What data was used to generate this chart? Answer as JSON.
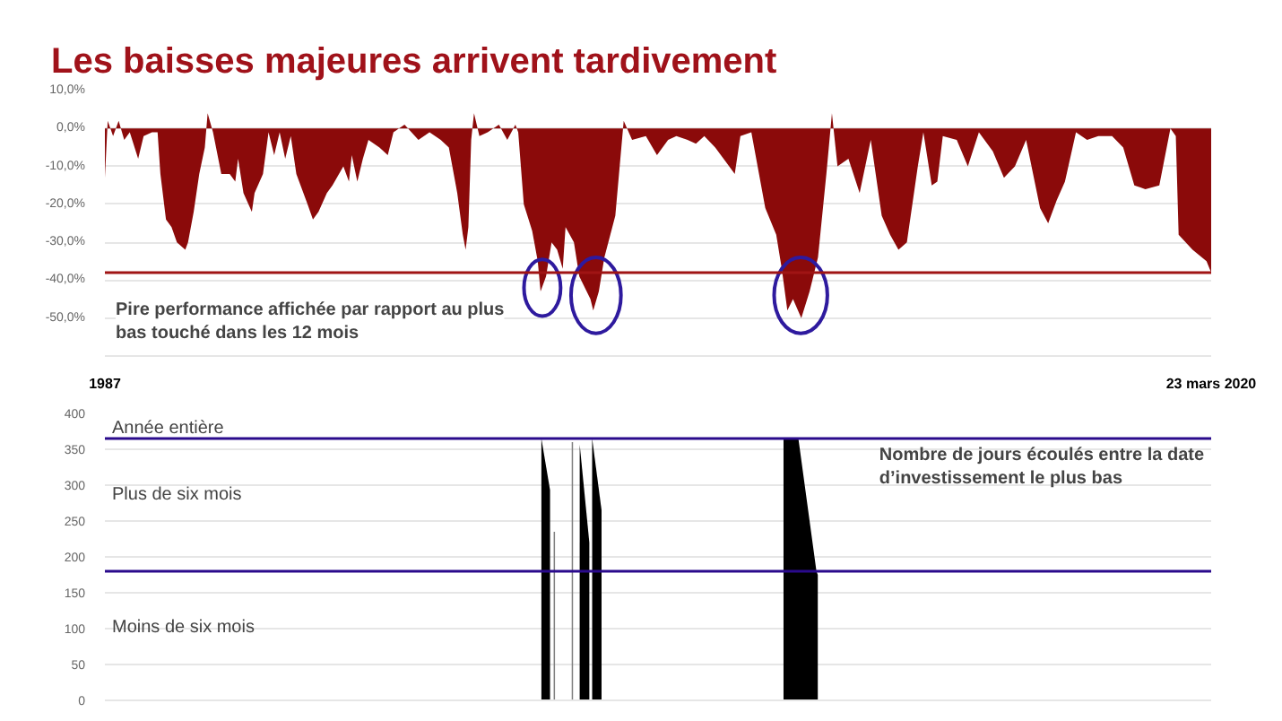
{
  "chart_data": [
    {
      "type": "area",
      "title": "Les baisses majeures arrivent tardivement",
      "x": [
        "1987-01",
        "1987-02",
        "1987-04",
        "1987-06",
        "1987-08",
        "1987-10",
        "1988-01",
        "1988-03",
        "1988-06",
        "1988-08",
        "1988-09",
        "1988-11",
        "1989-01",
        "1989-03",
        "1989-06",
        "1989-07",
        "1989-09",
        "1989-11",
        "1990-01",
        "1990-02",
        "1990-04",
        "1990-07",
        "1990-10",
        "1990-12",
        "1991-01",
        "1991-03",
        "1991-06",
        "1991-07",
        "1991-10",
        "1991-12",
        "1992-02",
        "1992-04",
        "1992-06",
        "1992-08",
        "1992-10",
        "1993-02",
        "1993-04",
        "1993-06",
        "1993-09",
        "1993-11",
        "1994-03",
        "1994-05",
        "1994-06",
        "1994-08",
        "1994-10",
        "1994-12",
        "1995-04",
        "1995-07",
        "1995-09",
        "1996-01",
        "1996-06",
        "1996-10",
        "1997-02",
        "1997-05",
        "1997-08",
        "1997-10",
        "1997-11",
        "1997-12",
        "1998-01",
        "1998-02",
        "1998-04",
        "1998-07",
        "1998-11",
        "1999-02",
        "1999-05",
        "1999-06",
        "1999-08",
        "1999-11",
        "2000-01",
        "2000-02",
        "2000-04",
        "2000-06",
        "2000-08",
        "2000-10",
        "2000-11",
        "2001-02",
        "2001-04",
        "2001-08",
        "2001-09",
        "2001-11",
        "2002-01",
        "2002-05",
        "2002-08",
        "2002-11",
        "2003-04",
        "2003-08",
        "2003-12",
        "2004-03",
        "2004-07",
        "2004-10",
        "2005-01",
        "2005-05",
        "2005-10",
        "2005-12",
        "2006-02",
        "2006-06",
        "2006-11",
        "2007-03",
        "2007-05",
        "2007-07",
        "2007-09",
        "2007-12",
        "2008-03",
        "2008-06",
        "2008-09",
        "2008-11",
        "2009-01",
        "2009-05",
        "2009-09",
        "2010-01",
        "2010-05",
        "2010-08",
        "2010-11",
        "2011-02",
        "2011-06",
        "2011-08",
        "2011-11",
        "2012-01",
        "2012-03",
        "2012-08",
        "2012-12",
        "2013-04",
        "2013-09",
        "2014-01",
        "2014-05",
        "2014-09",
        "2015-02",
        "2015-05",
        "2015-08",
        "2015-11",
        "2016-03",
        "2016-07",
        "2016-11",
        "2017-04",
        "2017-08",
        "2017-12",
        "2018-04",
        "2018-09",
        "2019-01",
        "2019-03",
        "2019-04",
        "2019-09",
        "2020-02",
        "2020-03-23"
      ],
      "series": [
        {
          "color": "#8b0a0a",
          "values": [
            -13,
            2,
            -2,
            2,
            -3,
            -1,
            -8,
            -2,
            -1,
            -1,
            -12,
            -24,
            -26,
            -30,
            -32,
            -30,
            -22,
            -12,
            -5,
            4,
            -1,
            -12,
            -12,
            -14,
            -8,
            -17,
            -22,
            -17,
            -12,
            -1,
            -7,
            -1,
            -8,
            -2,
            -12,
            -20,
            -24,
            -22,
            -17,
            -15,
            -10,
            -14,
            -7,
            -14,
            -8,
            -3,
            -5,
            -7,
            -1,
            1,
            -3,
            -1,
            -3,
            -5,
            -17,
            -28,
            -32,
            -26,
            -3,
            4,
            -2,
            -1,
            1,
            -3,
            1,
            -1,
            -20,
            -27,
            -35,
            -43,
            -39,
            -30,
            -32,
            -37,
            -26,
            -30,
            -39,
            -45,
            -48,
            -43,
            -34,
            -23,
            2,
            -3,
            -2,
            -7,
            -3,
            -2,
            -3,
            -4,
            -2,
            -5,
            -10,
            -12,
            -2,
            -1,
            -21,
            -28,
            -37,
            -48,
            -45,
            -50,
            -43,
            -34,
            -12,
            4,
            -10,
            -8,
            -17,
            -3,
            -23,
            -28,
            -32,
            -30,
            -10,
            -1,
            -15,
            -14,
            -2,
            -3,
            -10,
            -1,
            -6,
            -13,
            -10,
            -3,
            -21,
            -25,
            -19,
            -14,
            -1,
            -3,
            -2,
            -2,
            -5,
            -15,
            -16,
            -15,
            0,
            -2,
            -28,
            -32,
            -35,
            -38
          ]
        }
      ],
      "xlim": [
        "1987-01-01",
        "2020-03-23"
      ],
      "xticks": [
        {
          "value": "1987-01-01",
          "label": "1987"
        },
        {
          "value": "2020-03-23",
          "label": "23 mars 2020"
        }
      ],
      "ylim": [
        -60,
        10
      ],
      "yticks": [
        {
          "value": 10,
          "label": "10,0%"
        },
        {
          "value": 0,
          "label": "0,0%"
        },
        {
          "value": -10,
          "label": "-10,0%"
        },
        {
          "value": -20,
          "label": "-20,0%"
        },
        {
          "value": -30,
          "label": "-30,0%"
        },
        {
          "value": -40,
          "label": "-40,0%"
        },
        {
          "value": -50,
          "label": "-50,0%"
        },
        {
          "value": -60,
          "label": null
        }
      ],
      "grid": "y",
      "ref_lines": [
        {
          "axis": "y",
          "value": -38,
          "color": "#a01414"
        }
      ],
      "annotations": [
        "Pire performance affichée par rapport au plus bas touché dans les 12 mois"
      ]
    },
    {
      "type": "area",
      "x": [
        "2000-02-10",
        "2000-05-15",
        null,
        "2001-04-05",
        "2001-07-20",
        null,
        "2001-08-20",
        "2001-12-01",
        null,
        "2007-05-20",
        "2007-10-30",
        "2008-05-15",
        "2008-05-30"
      ],
      "series": [
        {
          "color": "#000000",
          "values": [
            365,
            293,
            null,
            357,
            220,
            null,
            365,
            265,
            null,
            365,
            365,
            180,
            175
          ]
        },
        {
          "type": "bar",
          "color": "#808080",
          "x": [
            "2000-07-01",
            "2001-01-15"
          ],
          "values": [
            235,
            360
          ]
        }
      ],
      "xlim": [
        "1987-01-01",
        "2020-03-23"
      ],
      "ylim": [
        0,
        400
      ],
      "yticks": [
        0,
        50,
        100,
        150,
        200,
        250,
        300,
        350,
        400
      ],
      "tick_labels": "y",
      "grid": "y",
      "ref_lines": [
        {
          "axis": "y",
          "value": 365,
          "label": "Année entière",
          "color": "#2a0a8c"
        },
        {
          "axis": "y",
          "value": 180,
          "color": "#2a0a8c"
        }
      ],
      "annotations": [
        "Plus de six mois",
        "Moins de six mois",
        "Nombre de jours écoulés entre la date d’investissement le plus bas"
      ]
    }
  ]
}
